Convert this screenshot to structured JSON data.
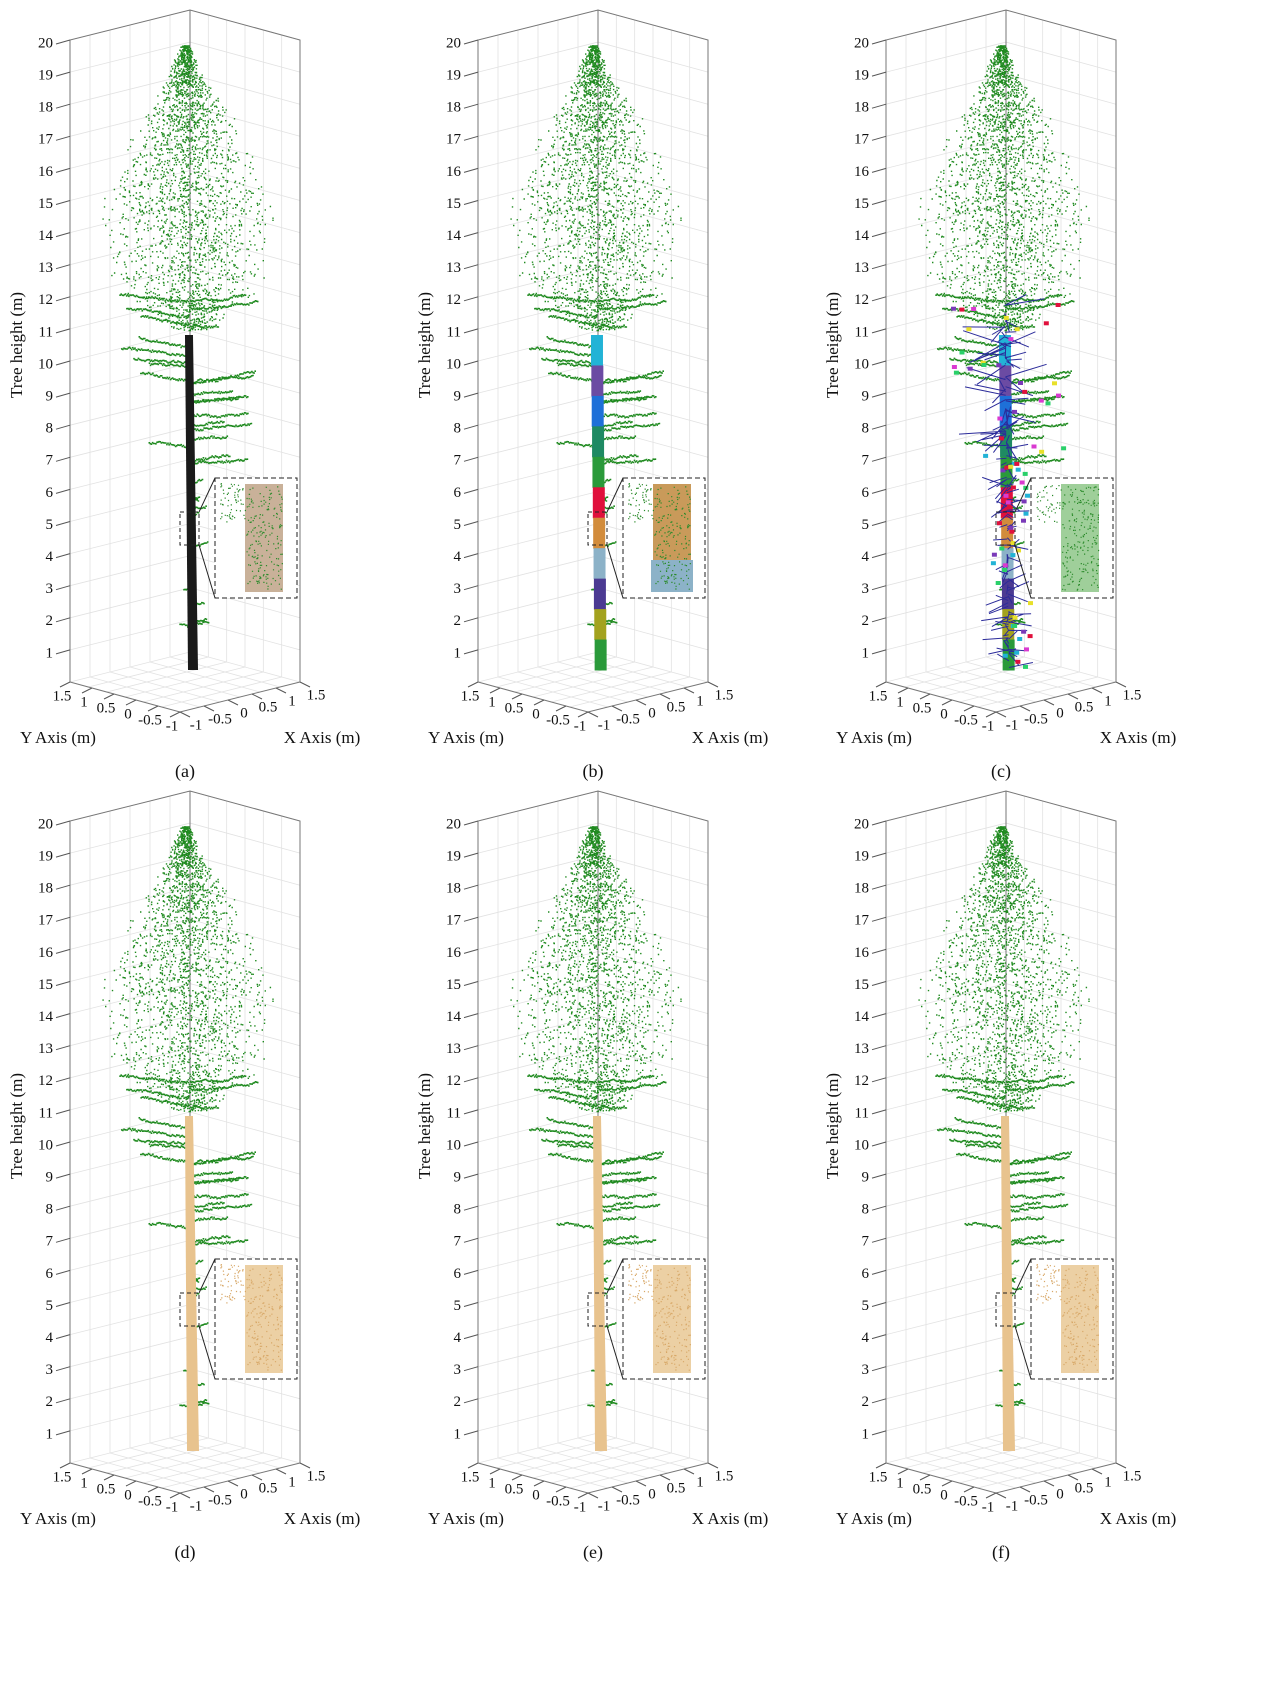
{
  "figure": {
    "panels": [
      {
        "caption": "(a)",
        "z_label": "Tree height (m)",
        "y_label": "Y Axis (m)",
        "x_label": "X Axis (m)",
        "z_ticks": [
          1,
          2,
          3,
          4,
          5,
          6,
          7,
          8,
          9,
          10,
          11,
          12,
          13,
          14,
          15,
          16,
          17,
          18,
          19,
          20
        ],
        "y_ticks": [
          1.5,
          1,
          0.5,
          0,
          -0.5,
          -1
        ],
        "x_ticks": [
          -1,
          -0.5,
          0,
          0.5,
          1,
          1.5
        ]
      },
      {
        "caption": "(b)",
        "z_label": "Tree height (m)",
        "y_label": "Y Axis (m)",
        "x_label": "X Axis (m)",
        "z_ticks": [
          1,
          2,
          3,
          4,
          5,
          6,
          7,
          8,
          9,
          10,
          11,
          12,
          13,
          14,
          15,
          16,
          17,
          18,
          19,
          20
        ],
        "y_ticks": [
          1.5,
          1,
          0.5,
          0,
          -0.5,
          -1
        ],
        "x_ticks": [
          -1,
          -0.5,
          0,
          0.5,
          1,
          1.5
        ]
      },
      {
        "caption": "(c)",
        "z_label": "Tree height (m)",
        "y_label": "Y Axis (m)",
        "x_label": "X Axis (m)",
        "z_ticks": [
          1,
          2,
          3,
          4,
          5,
          6,
          7,
          8,
          9,
          10,
          11,
          12,
          13,
          14,
          15,
          16,
          17,
          18,
          19,
          20
        ],
        "y_ticks": [
          1.5,
          1,
          0.5,
          0,
          -0.5,
          -1
        ],
        "x_ticks": [
          -1,
          -0.5,
          0,
          0.5,
          1,
          1.5
        ]
      },
      {
        "caption": "(d)",
        "z_label": "Tree height (m)",
        "y_label": "Y Axis (m)",
        "x_label": "X Axis (m)",
        "z_ticks": [
          1,
          2,
          3,
          4,
          5,
          6,
          7,
          8,
          9,
          10,
          11,
          12,
          13,
          14,
          15,
          16,
          17,
          18,
          19,
          20
        ],
        "y_ticks": [
          1.5,
          1,
          0.5,
          0,
          -0.5,
          -1
        ],
        "x_ticks": [
          -1,
          -0.5,
          0,
          0.5,
          1,
          1.5
        ]
      },
      {
        "caption": "(e)",
        "z_label": "Tree height (m)",
        "y_label": "Y Axis (m)",
        "x_label": "X Axis (m)",
        "z_ticks": [
          1,
          2,
          3,
          4,
          5,
          6,
          7,
          8,
          9,
          10,
          11,
          12,
          13,
          14,
          15,
          16,
          17,
          18,
          19,
          20
        ],
        "y_ticks": [
          1.5,
          1,
          0.5,
          0,
          -0.5,
          -1
        ],
        "x_ticks": [
          -1,
          -0.5,
          0,
          0.5,
          1,
          1.5
        ]
      },
      {
        "caption": "(f)",
        "z_label": "Tree height (m)",
        "y_label": "Y Axis (m)",
        "x_label": "X Axis (m)",
        "z_ticks": [
          1,
          2,
          3,
          4,
          5,
          6,
          7,
          8,
          9,
          10,
          11,
          12,
          13,
          14,
          15,
          16,
          17,
          18,
          19,
          20
        ],
        "y_ticks": [
          1.5,
          1,
          0.5,
          0,
          -0.5,
          -1
        ],
        "x_ticks": [
          -1,
          -0.5,
          0,
          0.5,
          1,
          1.5
        ]
      }
    ]
  }
}
